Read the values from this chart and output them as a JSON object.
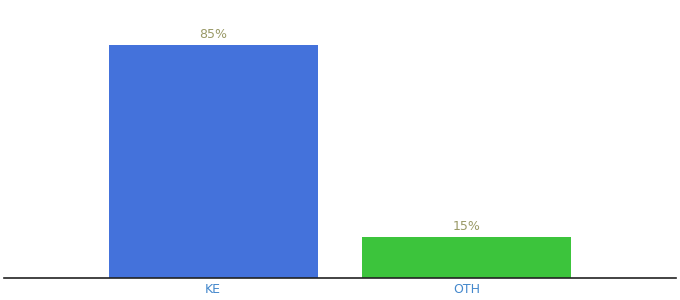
{
  "categories": [
    "KE",
    "OTH"
  ],
  "values": [
    85,
    15
  ],
  "bar_colors": [
    "#4472db",
    "#3cc43c"
  ],
  "label_color": "#999966",
  "tick_color": "#4488cc",
  "ylim": [
    0,
    100
  ],
  "bar_width": 0.28,
  "background_color": "#ffffff",
  "label_fontsize": 9,
  "tick_fontsize": 9,
  "spine_color": "#222222"
}
